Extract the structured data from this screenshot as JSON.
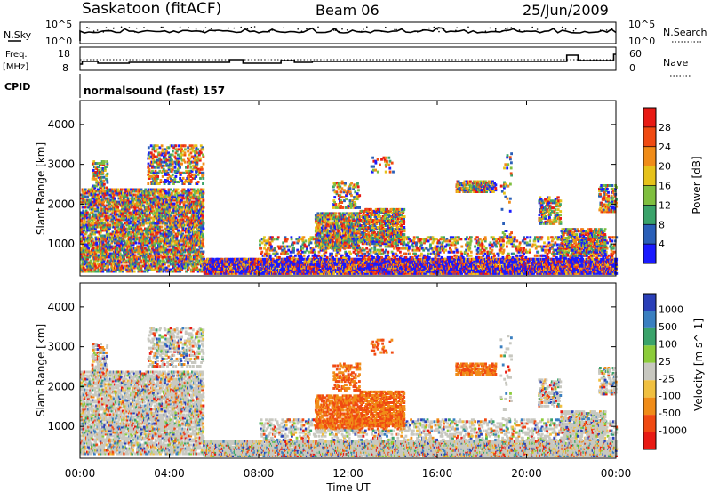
{
  "header": {
    "station": "Saskatoon (fitACF)",
    "beam": "Beam 06",
    "date": "25/Jun/2009"
  },
  "top_panels": {
    "nsky": {
      "left_label": "N.Sky",
      "right_label": "N.Search",
      "tick_top": "10^5",
      "tick_bottom": "10^0",
      "rtick_top": "10^5",
      "rtick_bottom": "10^0"
    },
    "freq": {
      "left_label_1": "Freq.",
      "left_label_2": "[MHz]",
      "right_label": "Nave",
      "ticks_left": [
        "18",
        "8"
      ],
      "ticks_right": [
        "60",
        "0"
      ]
    },
    "cpid": {
      "label": "CPID",
      "text": "normalsound (fast) 157"
    }
  },
  "chart_data": [
    {
      "type": "heatmap",
      "title": "Power",
      "ylabel": "Slant Range [km]",
      "ylim": [
        200,
        4600
      ],
      "yticks": [
        "1000",
        "2000",
        "3000",
        "4000"
      ],
      "colorbar": {
        "label": "Power [dB]",
        "ticks": [
          "4",
          "8",
          "12",
          "16",
          "20",
          "24",
          "28"
        ]
      },
      "colors": [
        "#1a1aff",
        "#2a5fb8",
        "#3aa36a",
        "#7fbf3f",
        "#e6c21a",
        "#f08c18",
        "#f04a12",
        "#e81a14"
      ]
    },
    {
      "type": "heatmap",
      "title": "Velocity",
      "ylabel": "Slant Range [km]",
      "ylim": [
        200,
        4600
      ],
      "yticks": [
        "1000",
        "2000",
        "3000",
        "4000"
      ],
      "colorbar": {
        "label": "Velocity [m s^-1]",
        "ticks": [
          "1000",
          "500",
          "100",
          "25",
          "-25",
          "-100",
          "-500",
          "-1000"
        ]
      },
      "colors": [
        "#2a3fb8",
        "#3a7fc0",
        "#3aa36a",
        "#8ccc3a",
        "#c8c8c0",
        "#f0c040",
        "#f08c18",
        "#f04a12",
        "#e81a14"
      ]
    }
  ],
  "x_axis": {
    "label": "Time UT",
    "ticks": [
      "00:00",
      "04:00",
      "08:00",
      "12:00",
      "16:00",
      "20:00",
      "00:00"
    ]
  }
}
